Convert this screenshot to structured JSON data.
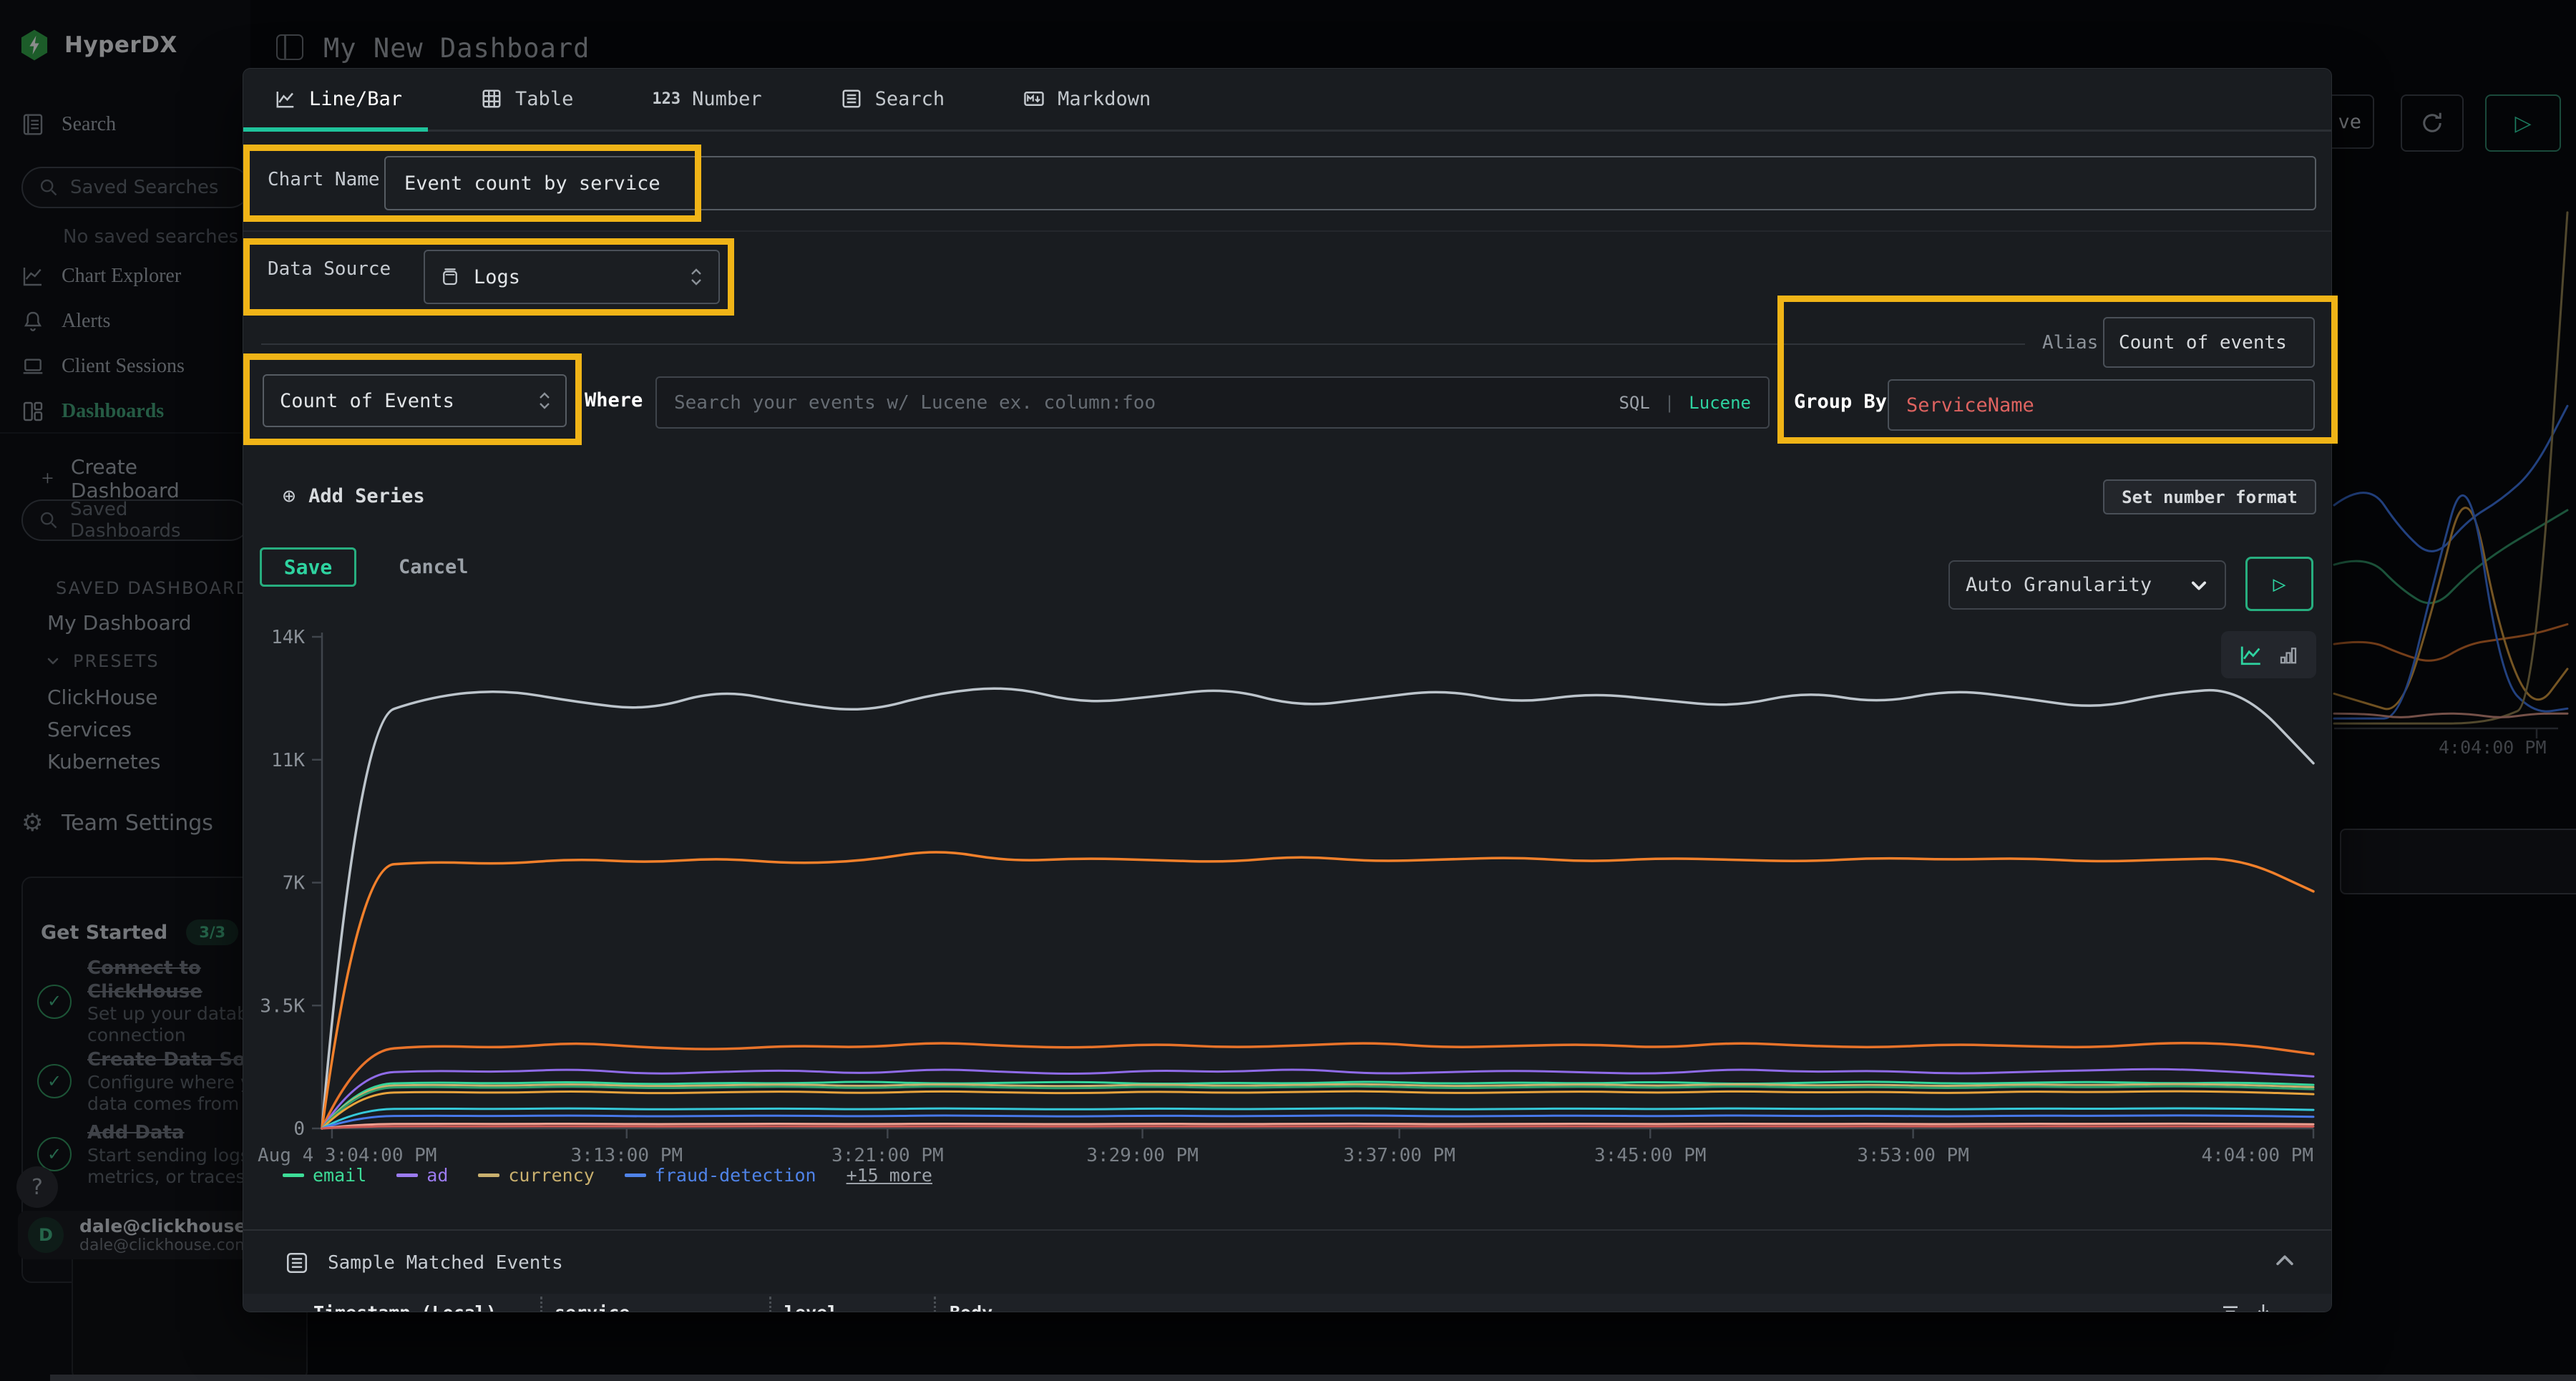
{
  "colors": {
    "accent": "#20c9a0",
    "annotation": "#f0b417",
    "danger": "#de6360",
    "sidebar_active": "#3f9b72"
  },
  "header": {
    "title": "My New Dashboard"
  },
  "sidebar": {
    "logo_text": "HyperDX",
    "search_label": "Search",
    "saved_searches_placeholder": "Saved Searches",
    "no_saved_searches": "No saved searches",
    "nav": [
      {
        "label": "Chart Explorer"
      },
      {
        "label": "Alerts"
      },
      {
        "label": "Client Sessions"
      },
      {
        "label": "Dashboards"
      }
    ],
    "create_dashboard": "Create Dashboard",
    "saved_dashboards_placeholder": "Saved Dashboards",
    "saved_dashboards_header": "SAVED DASHBOARDS",
    "my_dashboard": "My Dashboard",
    "presets_header": "PRESETS",
    "presets": [
      {
        "label": "ClickHouse"
      },
      {
        "label": "Services"
      },
      {
        "label": "Kubernetes"
      }
    ],
    "team_settings": "Team Settings"
  },
  "get_started": {
    "title": "Get Started",
    "badge": "3/3",
    "tasks": [
      {
        "title": "Connect to ClickHouse",
        "subtitle": "Set up your database connection"
      },
      {
        "title": "Create Data Source",
        "subtitle": "Configure where your data comes from"
      },
      {
        "title": "Add Data",
        "subtitle": "Start sending logs, metrics, or traces"
      }
    ]
  },
  "help_button": "?",
  "user": {
    "avatar_initial": "D",
    "email": "dale@clickhouse.c",
    "email_secondary": "dale@clickhouse.com's"
  },
  "modal": {
    "tabs": [
      {
        "label": "Line/Bar"
      },
      {
        "label": "Table"
      },
      {
        "label": "Number"
      },
      {
        "label": "Search"
      },
      {
        "label": "Markdown"
      }
    ],
    "number_tab_icon": "123",
    "chart_name_label": "Chart Name",
    "chart_name_value": "Event count by service",
    "data_source_label": "Data Source",
    "data_source_value": "Logs",
    "aggregation_value": "Count of Events",
    "where_label": "Where",
    "where_placeholder": "Search your events w/ Lucene ex. column:foo",
    "sql_toggle": "SQL",
    "toggle_divider": "|",
    "lucene_toggle": "Lucene",
    "alias_label": "Alias",
    "alias_value": "Count of events",
    "group_by_label": "Group By",
    "group_by_value": "ServiceName",
    "add_series_label": "Add Series",
    "set_number_format_label": "Set number format",
    "save_label": "Save",
    "cancel_label": "Cancel",
    "granularity_value": "Auto Granularity",
    "sample_events_header": "Sample Matched Events",
    "table_headers": [
      {
        "label": "Timestamp (Local)"
      },
      {
        "label": "service"
      },
      {
        "label": "level"
      },
      {
        "label": "Body"
      }
    ]
  },
  "background_page": {
    "partial_save_button": "ve",
    "tile_axis_label": "4:04:00 PM"
  },
  "chart_data": [
    {
      "id": "main",
      "type": "line",
      "title": "Event count by service",
      "xlabel": "",
      "ylabel": "",
      "ylim": [
        0,
        14000
      ],
      "grid": false,
      "legend_position": "bottom",
      "y_ticks": [
        {
          "label": "0",
          "value": 0
        },
        {
          "label": "3.5K",
          "value": 3500
        },
        {
          "label": "7K",
          "value": 7000
        },
        {
          "label": "11K",
          "value": 10500
        },
        {
          "label": "14K",
          "value": 14000
        }
      ],
      "x_ticks": [
        {
          "label": "Aug 4 3:04:00 PM",
          "f": 0.005,
          "anchor": "start"
        },
        {
          "label": "3:13:00 PM",
          "f": 0.153
        },
        {
          "label": "3:21:00 PM",
          "f": 0.284
        },
        {
          "label": "3:29:00 PM",
          "f": 0.412
        },
        {
          "label": "3:37:00 PM",
          "f": 0.541
        },
        {
          "label": "3:45:00 PM",
          "f": 0.667
        },
        {
          "label": "3:53:00 PM",
          "f": 0.799
        },
        {
          "label": "4:04:00 PM",
          "f": 1,
          "anchor": "end"
        }
      ],
      "legend": [
        {
          "label": "email",
          "color": "#3ddc97"
        },
        {
          "label": "ad",
          "color": "#9b7bf0"
        },
        {
          "label": "currency",
          "color": "#c9b06e"
        },
        {
          "label": "fraud-detection",
          "color": "#4f83e8"
        },
        {
          "label": "+15 more",
          "color": "#9ba1a8"
        }
      ],
      "series": [
        {
          "name": "unlabeled-top",
          "color": "#bcc4cb",
          "width": 3.5,
          "values": [
            0,
            11600,
            12300,
            12500,
            12150,
            11900,
            12500,
            12100,
            11850,
            12400,
            12600,
            12100,
            12300,
            12550,
            12000,
            12250,
            12500,
            12100,
            12400,
            12200,
            12000,
            12450,
            12100,
            12500,
            12250,
            11950,
            12400,
            12550,
            10400
          ]
        },
        {
          "name": "unlabeled-orange-hi",
          "color": "#f2802b",
          "width": 3.5,
          "values": [
            0,
            7450,
            7600,
            7520,
            7680,
            7570,
            7700,
            7540,
            7620,
            7950,
            7600,
            7700,
            7640,
            7580,
            7760,
            7600,
            7660,
            7720,
            7590,
            7700,
            7650,
            7600,
            7710,
            7650,
            7700,
            7590,
            7660,
            7700,
            6750
          ]
        },
        {
          "name": "unlabeled-orange-lo",
          "color": "#e8732a",
          "width": 3.5,
          "values": [
            0,
            2200,
            2360,
            2290,
            2450,
            2300,
            2240,
            2360,
            2300,
            2460,
            2340,
            2290,
            2410,
            2300,
            2360,
            2450,
            2300,
            2350,
            2400,
            2290,
            2450,
            2350,
            2300,
            2400,
            2340,
            2300,
            2450,
            2400,
            2120
          ]
        },
        {
          "name": "ad",
          "color": "#8f6be8",
          "width": 3,
          "values": [
            0,
            1560,
            1650,
            1600,
            1700,
            1540,
            1610,
            1660,
            1550,
            1700,
            1600,
            1540,
            1660,
            1600,
            1700,
            1550,
            1600,
            1650,
            1590,
            1550,
            1700,
            1600,
            1650,
            1550,
            1610,
            1660,
            1700,
            1600,
            1480
          ]
        },
        {
          "name": "email",
          "color": "#35d59a",
          "width": 3,
          "values": [
            0,
            1260,
            1310,
            1280,
            1330,
            1250,
            1300,
            1280,
            1340,
            1270,
            1300,
            1330,
            1260,
            1300,
            1280,
            1340,
            1270,
            1310,
            1280,
            1330,
            1260,
            1300,
            1340,
            1270,
            1300,
            1330,
            1280,
            1310,
            1240
          ]
        },
        {
          "name": "currency",
          "color": "#c9b06e",
          "width": 3,
          "values": [
            0,
            1200,
            1245,
            1210,
            1265,
            1195,
            1230,
            1255,
            1200,
            1265,
            1220,
            1200,
            1255,
            1210,
            1240,
            1265,
            1200,
            1230,
            1255,
            1210,
            1265,
            1220,
            1245,
            1200,
            1255,
            1230,
            1265,
            1240,
            1175
          ]
        },
        {
          "name": "unlabeled-green",
          "color": "#2e9e6b",
          "width": 3,
          "values": [
            0,
            1150,
            1185,
            1150,
            1205,
            1140,
            1170,
            1195,
            1140,
            1205,
            1160,
            1140,
            1195,
            1150,
            1180,
            1205,
            1140,
            1170,
            1195,
            1150,
            1205,
            1160,
            1180,
            1140,
            1195,
            1170,
            1205,
            1180,
            1115
          ]
        },
        {
          "name": "unlabeled-amber",
          "color": "#e8a33d",
          "width": 3,
          "values": [
            0,
            1000,
            1045,
            1010,
            1065,
            995,
            1030,
            1055,
            1000,
            1065,
            1020,
            1000,
            1055,
            1010,
            1040,
            1065,
            1000,
            1030,
            1055,
            1010,
            1065,
            1020,
            1045,
            1000,
            1055,
            1030,
            1065,
            1040,
            975
          ]
        },
        {
          "name": "unlabeled-cyan",
          "color": "#35c8d8",
          "width": 3,
          "values": [
            0,
            545,
            565,
            550,
            575,
            540,
            555,
            568,
            540,
            575,
            552,
            540,
            568,
            546,
            560,
            575,
            540,
            556,
            568,
            546,
            575,
            552,
            562,
            540,
            568,
            556,
            575,
            562,
            528
          ]
        },
        {
          "name": "fraud-detection",
          "color": "#4878e8",
          "width": 3,
          "values": [
            0,
            345,
            362,
            350,
            372,
            340,
            356,
            366,
            342,
            372,
            352,
            340,
            366,
            346,
            360,
            372,
            340,
            356,
            366,
            346,
            372,
            352,
            362,
            340,
            366,
            356,
            372,
            362,
            332
          ]
        },
        {
          "name": "unlabeled-salmon",
          "color": "#f0a090",
          "width": 3,
          "values": [
            0,
            122,
            132,
            126,
            136,
            120,
            128,
            133,
            121,
            136,
            126,
            120,
            133,
            122,
            130,
            136,
            120,
            128,
            133,
            122,
            136,
            126,
            131,
            120,
            133,
            128,
            136,
            131,
            118
          ]
        },
        {
          "name": "unlabeled-red",
          "color": "#cf5a56",
          "width": 3,
          "values": [
            0,
            56,
            61,
            58,
            63,
            55,
            59,
            62,
            55,
            63,
            58,
            55,
            62,
            56,
            60,
            63,
            55,
            59,
            62,
            56,
            63,
            58,
            61,
            55,
            62,
            59,
            63,
            61,
            54
          ]
        }
      ]
    },
    {
      "id": "background-tile",
      "type": "line",
      "ylim": [
        0,
        1.05
      ],
      "x_axis_label": "4:04:00 PM",
      "series": [
        {
          "name": "blue",
          "color": "#3a6fd8",
          "values": [
            0.45,
            0.5,
            0.4,
            0.34,
            0.42,
            0.46,
            0.52,
            0.65
          ]
        },
        {
          "name": "green",
          "color": "#2f8f63",
          "values": [
            0.33,
            0.35,
            0.28,
            0.24,
            0.31,
            0.36,
            0.4,
            0.44
          ]
        },
        {
          "name": "orange",
          "color": "#c96a28",
          "values": [
            0.17,
            0.18,
            0.15,
            0.13,
            0.17,
            0.18,
            0.19,
            0.21
          ]
        },
        {
          "name": "amber-bump",
          "color": "#c9913a",
          "values": [
            0.07,
            0.05,
            0.03,
            0.25,
            0.52,
            0.18,
            0.03,
            0.12
          ]
        },
        {
          "name": "blue-bump",
          "color": "#3a6fd8",
          "values": [
            0.02,
            0.02,
            0.02,
            0.3,
            0.55,
            0.1,
            0.03,
            0.04
          ]
        },
        {
          "name": "tan-spike",
          "color": "#8a7a4a",
          "values": [
            0.01,
            0.01,
            0.01,
            0.01,
            0.01,
            0.02,
            0.05,
            1.04
          ]
        },
        {
          "name": "salmon-flat",
          "color": "#c98a7a",
          "values": [
            0.03,
            0.03,
            0.02,
            0.03,
            0.03,
            0.02,
            0.03,
            0.03
          ]
        }
      ]
    }
  ]
}
